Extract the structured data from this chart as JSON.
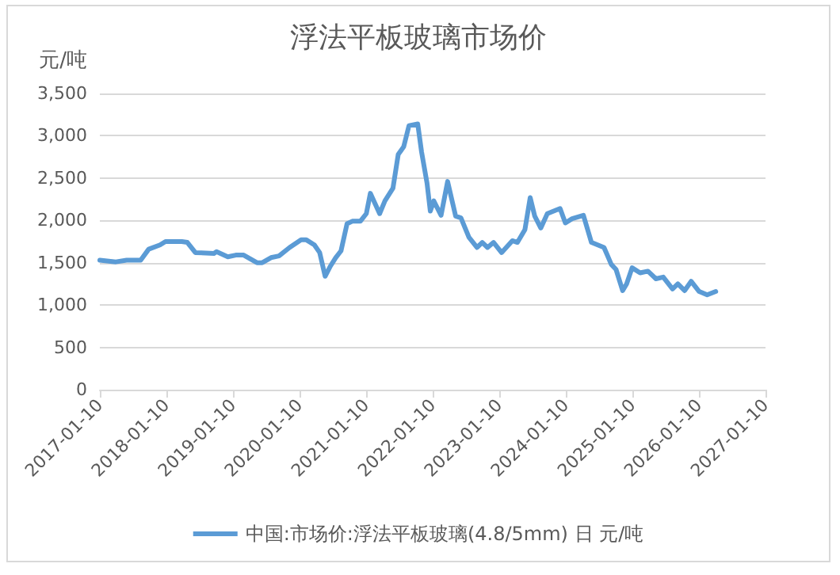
{
  "chart_data": {
    "type": "line",
    "title": "浮法平板玻璃市场价",
    "ylabel": "元/吨",
    "x": [
      "2017-01-10",
      "2017-04-08",
      "2017-06-06",
      "2017-08-22",
      "2017-10-05",
      "2017-12-06",
      "2018-01-05",
      "2018-04-05",
      "2018-05-05",
      "2018-06-18",
      "2018-09-28",
      "2018-10-12",
      "2018-12-13",
      "2019-01-26",
      "2019-03-10",
      "2019-05-22",
      "2019-06-20",
      "2019-08-07",
      "2019-09-20",
      "2019-11-17",
      "2020-01-19",
      "2020-02-17",
      "2020-04-01",
      "2020-04-30",
      "2020-05-30",
      "2020-06-28",
      "2020-07-27",
      "2020-08-25",
      "2020-09-27",
      "2020-10-26",
      "2020-12-09",
      "2021-01-11",
      "2021-02-02",
      "2021-03-25",
      "2021-04-23",
      "2021-06-06",
      "2021-07-05",
      "2021-08-04",
      "2021-09-02",
      "2021-10-20",
      "2021-11-10",
      "2021-12-10",
      "2021-12-28",
      "2022-01-16",
      "2022-02-25",
      "2022-04-02",
      "2022-05-16",
      "2022-06-14",
      "2022-07-28",
      "2022-09-10",
      "2022-10-09",
      "2022-11-07",
      "2022-12-10",
      "2023-01-23",
      "2023-03-23",
      "2023-04-20",
      "2023-05-31",
      "2023-06-29",
      "2023-07-24",
      "2023-08-26",
      "2023-10-01",
      "2023-12-10",
      "2024-01-08",
      "2024-02-14",
      "2024-04-16",
      "2024-05-30",
      "2024-08-07",
      "2024-09-16",
      "2024-10-12",
      "2024-11-17",
      "2024-12-09",
      "2025-01-08",
      "2025-02-21",
      "2025-04-05",
      "2025-05-19",
      "2025-06-28",
      "2025-08-18",
      "2025-09-16",
      "2025-10-23",
      "2025-11-28",
      "2026-01-11",
      "2026-02-24",
      "2026-04-12"
    ],
    "series": [
      {
        "name": "中国:市场价:浮法平板玻璃(4.8/5mm) 日 元/吨",
        "color": "#5b9bd5",
        "values": [
          1530,
          1510,
          1530,
          1530,
          1660,
          1710,
          1750,
          1750,
          1740,
          1620,
          1610,
          1630,
          1570,
          1590,
          1590,
          1500,
          1500,
          1560,
          1580,
          1680,
          1770,
          1770,
          1710,
          1620,
          1340,
          1460,
          1560,
          1640,
          1960,
          1990,
          1990,
          2080,
          2320,
          2080,
          2230,
          2380,
          2780,
          2870,
          3120,
          3140,
          2810,
          2440,
          2110,
          2230,
          2060,
          2460,
          2050,
          2030,
          1800,
          1680,
          1740,
          1680,
          1740,
          1620,
          1760,
          1740,
          1890,
          2270,
          2050,
          1910,
          2080,
          2140,
          1970,
          2020,
          2060,
          1740,
          1680,
          1480,
          1420,
          1170,
          1250,
          1440,
          1380,
          1400,
          1310,
          1330,
          1190,
          1250,
          1170,
          1280,
          1160,
          1120,
          1160
        ]
      }
    ],
    "xlim": [
      "2017-01-10",
      "2027-01-10"
    ],
    "xticks": [
      "2017-01-10",
      "2018-01-10",
      "2019-01-10",
      "2020-01-10",
      "2021-01-10",
      "2022-01-10",
      "2023-01-10",
      "2024-01-10",
      "2025-01-10",
      "2026-01-10",
      "2027-01-10"
    ],
    "ylim": [
      0,
      3500
    ],
    "yticks": [
      {
        "value": 0,
        "label": "0"
      },
      {
        "value": 500,
        "label": "500"
      },
      {
        "value": 1000,
        "label": "1,000"
      },
      {
        "value": 1500,
        "label": "1,500"
      },
      {
        "value": 2000,
        "label": "2,000"
      },
      {
        "value": 2500,
        "label": "2,500"
      },
      {
        "value": 3000,
        "label": "3,000"
      },
      {
        "value": 3500,
        "label": "3,500"
      }
    ],
    "grid": "y",
    "legend": "bottom",
    "marker": "none",
    "line_style": "solid"
  }
}
